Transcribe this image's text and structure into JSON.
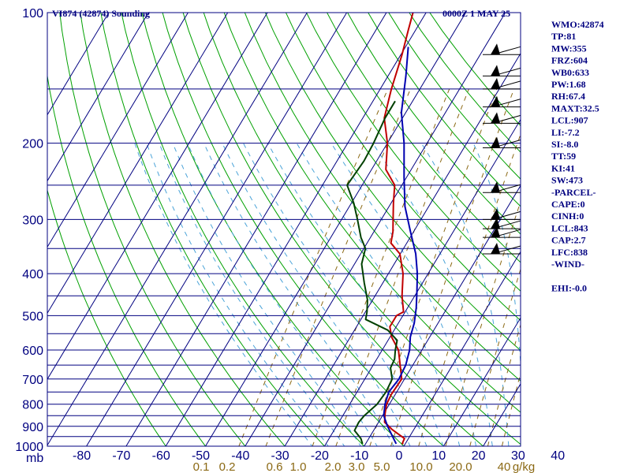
{
  "title_left": "VI874 (42874) Sounding",
  "title_right": "0000Z  1 MAY 25",
  "indices": [
    "WMO:42874",
    "TP:81",
    "MW:355",
    "FRZ:604",
    "WB0:633",
    "PW:1.68",
    "RH:67.4",
    "MAXT:32.5",
    "LCL:907",
    "LI:-7.2",
    "SI:-8.0",
    "TT:59",
    "KI:41",
    "SW:473",
    "-PARCEL-",
    "CAPE:0",
    "CINH:0",
    "LCL:843",
    "CAP:2.7",
    "LFC:838",
    "-WIND-",
    "",
    "EHI:-0.0"
  ],
  "chart_data": {
    "type": "line",
    "diagram": "skew-T log-p",
    "y_unit_label": "mb",
    "yticks": [
      100,
      200,
      300,
      400,
      500,
      600,
      700,
      800,
      900,
      1000
    ],
    "xticks": [
      -80,
      -70,
      -60,
      -50,
      -40,
      -30,
      -20,
      -10,
      0,
      10,
      20,
      30,
      40
    ],
    "xtick_labels": [
      "-80",
      "-70",
      "-60",
      "-50",
      "-40",
      "-30",
      "-20",
      "-10",
      "0",
      "10",
      "20",
      "30",
      "40"
    ],
    "mixing_ratio_label": "g/kg",
    "mixing_ratio_labels": [
      "0.1",
      "0.2",
      "0.6",
      "1.0",
      "2.0",
      "3.0",
      "5.0",
      "10.0",
      "20.0",
      "40"
    ],
    "xlim": [
      -80,
      30
    ],
    "ylim": [
      1000,
      100
    ],
    "colors": {
      "grid": "#000080",
      "dry_adiabat": "#00a000",
      "moist_adiabat": "#4aa3d8",
      "mixing_ratio": "#8b6914",
      "temperature": "#c00000",
      "dewpoint": "#004000",
      "parcel": "#0000b0",
      "wind": "#000000"
    },
    "series": [
      {
        "key": "temperature",
        "points": [
          [
            987,
            -0.5
          ],
          [
            985,
            -0.8
          ],
          [
            960,
            -1.0
          ],
          [
            940,
            -3.0
          ],
          [
            915,
            -5.5
          ],
          [
            880,
            -8.5
          ],
          [
            840,
            -9.7
          ],
          [
            800,
            -10.7
          ],
          [
            760,
            -11.0
          ],
          [
            720,
            -10.8
          ],
          [
            700,
            -10.7
          ],
          [
            650,
            -13.2
          ],
          [
            600,
            -15.9
          ],
          [
            560,
            -19.6
          ],
          [
            530,
            -21.6
          ],
          [
            500,
            -21.6
          ],
          [
            490,
            -20.4
          ],
          [
            450,
            -23.2
          ],
          [
            400,
            -26.3
          ],
          [
            360,
            -30.1
          ],
          [
            340,
            -34.0
          ],
          [
            320,
            -35.2
          ],
          [
            300,
            -37.0
          ],
          [
            275,
            -39.4
          ],
          [
            250,
            -41.8
          ],
          [
            230,
            -46.4
          ],
          [
            200,
            -50.0
          ],
          [
            175,
            -54.6
          ],
          [
            150,
            -57.2
          ],
          [
            125,
            -59.7
          ],
          [
            110,
            -61.8
          ],
          [
            100,
            -63.3
          ]
        ]
      },
      {
        "key": "dewpoint",
        "points": [
          [
            987,
            -10.8
          ],
          [
            960,
            -12.0
          ],
          [
            920,
            -14.8
          ],
          [
            880,
            -15.0
          ],
          [
            850,
            -14.6
          ],
          [
            800,
            -13.1
          ],
          [
            750,
            -12.7
          ],
          [
            700,
            -13.1
          ],
          [
            660,
            -15.2
          ],
          [
            630,
            -15.5
          ],
          [
            600,
            -16.7
          ],
          [
            570,
            -17.7
          ],
          [
            540,
            -21.6
          ],
          [
            510,
            -28.8
          ],
          [
            490,
            -29.6
          ],
          [
            460,
            -31.3
          ],
          [
            420,
            -34.7
          ],
          [
            380,
            -38.2
          ],
          [
            350,
            -39.6
          ],
          [
            330,
            -42.4
          ],
          [
            300,
            -46.0
          ],
          [
            275,
            -49.4
          ],
          [
            250,
            -53.8
          ],
          [
            220,
            -53.2
          ],
          [
            200,
            -53.5
          ],
          [
            175,
            -54.4
          ],
          [
            160,
            -54.4
          ]
        ]
      },
      {
        "key": "parcel",
        "points": [
          [
            987,
            -2.3
          ],
          [
            950,
            -4.3
          ],
          [
            900,
            -7.1
          ],
          [
            850,
            -9.7
          ],
          [
            800,
            -11.1
          ],
          [
            750,
            -12.0
          ],
          [
            700,
            -11.4
          ],
          [
            650,
            -11.8
          ],
          [
            600,
            -13.1
          ],
          [
            560,
            -14.9
          ],
          [
            520,
            -16.0
          ],
          [
            480,
            -17.8
          ],
          [
            440,
            -20.1
          ],
          [
            400,
            -22.7
          ],
          [
            360,
            -26.1
          ],
          [
            320,
            -30.8
          ],
          [
            280,
            -36.0
          ],
          [
            240,
            -40.6
          ],
          [
            200,
            -45.8
          ],
          [
            170,
            -51.1
          ],
          [
            140,
            -55.5
          ],
          [
            120,
            -59.3
          ]
        ]
      }
    ],
    "wind_barbs": [
      {
        "p": 125
      },
      {
        "p": 140
      },
      {
        "p": 150
      },
      {
        "p": 165
      },
      {
        "p": 180
      },
      {
        "p": 205
      },
      {
        "p": 260
      },
      {
        "p": 300
      },
      {
        "p": 315
      },
      {
        "p": 330
      },
      {
        "p": 360
      }
    ]
  }
}
